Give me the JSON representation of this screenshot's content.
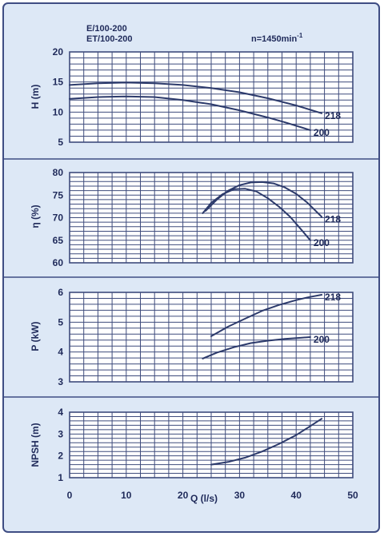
{
  "header": {
    "model_line1": "E/100-200",
    "model_line2": "ET/100-200",
    "speed_label": "n=1450min",
    "speed_exp": "-1"
  },
  "colors": {
    "frame": "#3f4d83",
    "background": "#dde8f6",
    "grid": "#3e4b7c",
    "curve": "#2c3a6b",
    "text": "#1f2a5a"
  },
  "x_axis": {
    "label": "Q (l/s)",
    "range": [
      0,
      50
    ],
    "ticks": [
      0,
      10,
      20,
      30,
      40,
      50
    ]
  },
  "chart_data": [
    {
      "type": "line",
      "ylabel": "H (m)",
      "xlim": [
        0,
        50
      ],
      "ylim": [
        5,
        20
      ],
      "yticks": [
        5,
        10,
        15,
        20
      ],
      "series": [
        {
          "name": "218",
          "x": [
            0,
            5,
            10,
            15,
            20,
            25,
            30,
            35,
            40,
            44.5
          ],
          "y": [
            14.5,
            14.8,
            14.9,
            14.8,
            14.5,
            14.0,
            13.3,
            12.3,
            11.1,
            9.8
          ]
        },
        {
          "name": "200",
          "x": [
            0,
            5,
            10,
            15,
            20,
            25,
            30,
            35,
            38,
            42.5
          ],
          "y": [
            12.2,
            12.5,
            12.6,
            12.5,
            12.0,
            11.3,
            10.3,
            9.1,
            8.3,
            7.0
          ]
        }
      ]
    },
    {
      "type": "line",
      "ylabel": "η (%)",
      "xlim": [
        0,
        50
      ],
      "ylim": [
        60,
        80
      ],
      "yticks": [
        60,
        65,
        70,
        75,
        80
      ],
      "series": [
        {
          "name": "218",
          "x": [
            24,
            26,
            28,
            30,
            32,
            34,
            36,
            38,
            40,
            42,
            44.5
          ],
          "y": [
            71.5,
            74.0,
            76.0,
            77.2,
            77.8,
            77.9,
            77.6,
            76.7,
            75.3,
            73.3,
            70.2
          ]
        },
        {
          "name": "200",
          "x": [
            23.5,
            25,
            27,
            29,
            31,
            33,
            35,
            37,
            39,
            41,
            42.5
          ],
          "y": [
            71.0,
            73.3,
            75.2,
            76.3,
            76.4,
            75.8,
            74.3,
            72.4,
            70.1,
            67.2,
            65.0
          ]
        }
      ]
    },
    {
      "type": "line",
      "ylabel": "P (kW)",
      "xlim": [
        0,
        50
      ],
      "ylim": [
        3,
        6
      ],
      "yticks": [
        3,
        4,
        5,
        6
      ],
      "series": [
        {
          "name": "218",
          "x": [
            25,
            28,
            31,
            34,
            37,
            40,
            42,
            44.5
          ],
          "y": [
            4.53,
            4.85,
            5.12,
            5.38,
            5.58,
            5.74,
            5.83,
            5.92
          ]
        },
        {
          "name": "200",
          "x": [
            23.5,
            26,
            29,
            32,
            35,
            38,
            41,
            42.5
          ],
          "y": [
            3.78,
            3.98,
            4.16,
            4.3,
            4.38,
            4.44,
            4.48,
            4.5
          ]
        }
      ]
    },
    {
      "type": "line",
      "ylabel": "NPSH (m)",
      "xlim": [
        0,
        50
      ],
      "ylim": [
        1,
        4
      ],
      "yticks": [
        1,
        2,
        3,
        4
      ],
      "series": [
        {
          "x": [
            25,
            28,
            31,
            34,
            37,
            40,
            42,
            44.5
          ],
          "y": [
            1.6,
            1.72,
            1.92,
            2.2,
            2.55,
            2.95,
            3.28,
            3.7
          ]
        }
      ]
    }
  ]
}
